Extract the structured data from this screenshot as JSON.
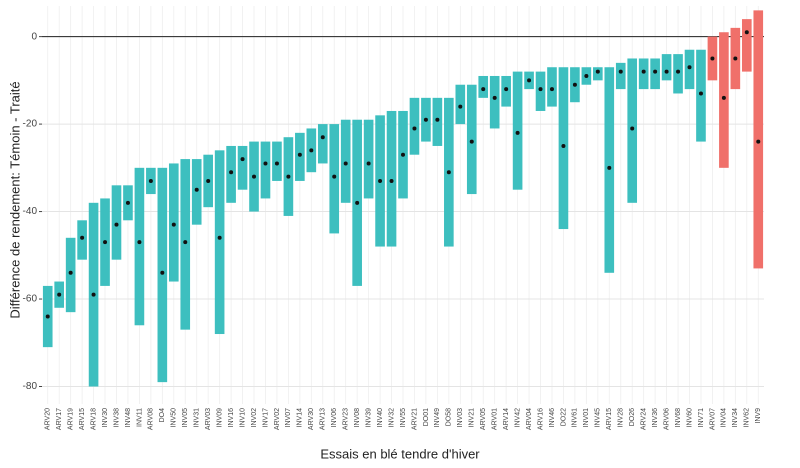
{
  "chart_data": {
    "type": "range_bar",
    "xlabel": "Essais en blé tendre d'hiver",
    "ylabel": "Différence de rendement: Témoin - Traité",
    "categories": [
      "ARV20",
      "ARV17",
      "ARV19",
      "ARV15",
      "ARV18",
      "INV30",
      "INV38",
      "INV48",
      "INV11",
      "ARV08",
      "DO4",
      "INV50",
      "INV05",
      "INV31",
      "ARV03",
      "INV09",
      "INV16",
      "INV10",
      "INV02",
      "INV17",
      "ARV02",
      "INV07",
      "INV14",
      "ARV30",
      "ARV13",
      "INV06",
      "ARV23",
      "INV08",
      "INV39",
      "INV40",
      "INV32",
      "INV55",
      "ARV21",
      "DO01",
      "INV49",
      "DO58",
      "INV03",
      "INV21",
      "ARV05",
      "ARV01",
      "ARV14",
      "INV42",
      "ARV04",
      "ARV16",
      "INV46",
      "DO22",
      "INV61",
      "INV01",
      "INV45",
      "ARV15",
      "INV28",
      "DO26",
      "ARV24",
      "INV36",
      "ARV06",
      "INV68",
      "INV60",
      "INV71",
      "ARV07",
      "INV04",
      "INV34",
      "INV62",
      "INV9"
    ],
    "upper": [
      -57,
      -56,
      -46,
      -42,
      -38,
      -37,
      -34,
      -34,
      -30,
      -30,
      -30,
      -29,
      -28,
      -28,
      -27,
      -26,
      -25,
      -25,
      -24,
      -24,
      -24,
      -23,
      -22,
      -21,
      -20,
      -20,
      -19,
      -19,
      -19,
      -18,
      -17,
      -17,
      -14,
      -14,
      -14,
      -14,
      -11,
      -11,
      -9,
      -9,
      -9,
      -8,
      -8,
      -8,
      -7,
      -7,
      -7,
      -7,
      -7,
      -7,
      -6,
      -5,
      -5,
      -5,
      -4,
      -4,
      -3,
      -3,
      0,
      1,
      2,
      4,
      6
    ],
    "lower": [
      -71,
      -62,
      -63,
      -51,
      -80,
      -57,
      -51,
      -42,
      -66,
      -36,
      -79,
      -56,
      -67,
      -43,
      -39,
      -68,
      -38,
      -35,
      -40,
      -37,
      -33,
      -41,
      -33,
      -31,
      -29,
      -45,
      -38,
      -57,
      -37,
      -48,
      -48,
      -37,
      -27,
      -24,
      -25,
      -48,
      -20,
      -36,
      -14,
      -21,
      -16,
      -35,
      -12,
      -17,
      -16,
      -44,
      -15,
      -11,
      -10,
      -54,
      -12,
      -38,
      -12,
      -12,
      -10,
      -13,
      -12,
      -24,
      -10,
      -30,
      -12,
      -8,
      -53
    ],
    "values": [
      -64,
      -59,
      -54,
      -46,
      -59,
      -47,
      -43,
      -38,
      -47,
      -33,
      -54,
      -43,
      -47,
      -35,
      -33,
      -46,
      -31,
      -28,
      -32,
      -29,
      -29,
      -32,
      -27,
      -26,
      -23,
      -32,
      -29,
      -38,
      -29,
      -33,
      -33,
      -27,
      -21,
      -19,
      -19,
      -31,
      -16,
      -24,
      -12,
      -14,
      -12,
      -22,
      -10,
      -12,
      -12,
      -25,
      -11,
      -9,
      -8,
      -30,
      -8,
      -21,
      -8,
      -8,
      -8,
      -8,
      -7,
      -13,
      -5,
      -14,
      -5,
      1,
      -24
    ],
    "colors": [
      "#3dbfbf",
      "#3dbfbf",
      "#3dbfbf",
      "#3dbfbf",
      "#3dbfbf",
      "#3dbfbf",
      "#3dbfbf",
      "#3dbfbf",
      "#3dbfbf",
      "#3dbfbf",
      "#3dbfbf",
      "#3dbfbf",
      "#3dbfbf",
      "#3dbfbf",
      "#3dbfbf",
      "#3dbfbf",
      "#3dbfbf",
      "#3dbfbf",
      "#3dbfbf",
      "#3dbfbf",
      "#3dbfbf",
      "#3dbfbf",
      "#3dbfbf",
      "#3dbfbf",
      "#3dbfbf",
      "#3dbfbf",
      "#3dbfbf",
      "#3dbfbf",
      "#3dbfbf",
      "#3dbfbf",
      "#3dbfbf",
      "#3dbfbf",
      "#3dbfbf",
      "#3dbfbf",
      "#3dbfbf",
      "#3dbfbf",
      "#3dbfbf",
      "#3dbfbf",
      "#3dbfbf",
      "#3dbfbf",
      "#3dbfbf",
      "#3dbfbf",
      "#3dbfbf",
      "#3dbfbf",
      "#3dbfbf",
      "#3dbfbf",
      "#3dbfbf",
      "#3dbfbf",
      "#3dbfbf",
      "#3dbfbf",
      "#3dbfbf",
      "#3dbfbf",
      "#3dbfbf",
      "#3dbfbf",
      "#3dbfbf",
      "#3dbfbf",
      "#3dbfbf",
      "#3dbfbf",
      "#f0706a",
      "#f0706a",
      "#f0706a",
      "#f0706a",
      "#f0706a"
    ],
    "point_color": "#111111",
    "hline": 0,
    "ylim": [
      -84,
      7
    ],
    "yticks": [
      -80,
      -60,
      -40,
      -20,
      0
    ],
    "grid": true
  }
}
